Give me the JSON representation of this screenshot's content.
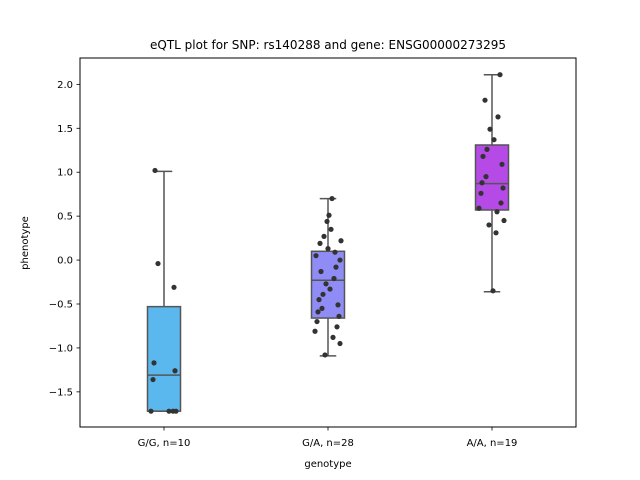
{
  "chart_data": {
    "type": "box",
    "title": "eQTL plot for SNP: rs140288 and gene: ENSG00000273295",
    "xlabel": "genotype",
    "ylabel": "phenotype",
    "ylim": [
      -1.9,
      2.3
    ],
    "yticks": [
      -1.5,
      -1.0,
      -0.5,
      0.0,
      0.5,
      1.0,
      1.5,
      2.0
    ],
    "ytick_labels": [
      "−1.5",
      "−1.0",
      "−0.5",
      "0.0",
      "0.5",
      "1.0",
      "1.5",
      "2.0"
    ],
    "grid": false,
    "categories": [
      "G/G, n=10",
      "G/A, n=28",
      "A/A, n=19"
    ],
    "boxes": [
      {
        "category": "G/G, n=10",
        "color": "#5bb8ee",
        "whisker_low": -1.72,
        "q1": -1.72,
        "median": -1.31,
        "q3": -0.53,
        "whisker_high": 1.01
      },
      {
        "category": "G/A, n=28",
        "color": "#8f8cf6",
        "whisker_low": -1.09,
        "q1": -0.66,
        "median": -0.23,
        "q3": 0.1,
        "whisker_high": 0.7
      },
      {
        "category": "A/A, n=19",
        "color": "#b64ae6",
        "whisker_low": -0.36,
        "q1": 0.57,
        "median": 0.87,
        "q3": 1.31,
        "whisker_high": 2.11
      }
    ],
    "points": [
      [
        1.02,
        -0.31,
        -0.04,
        -1.17,
        -1.26,
        -1.36,
        -1.72,
        -1.72,
        -1.72,
        -1.72
      ],
      [
        0.7,
        0.51,
        0.44,
        0.35,
        0.27,
        0.22,
        0.19,
        0.13,
        0.09,
        0.05,
        0.0,
        -0.08,
        -0.13,
        -0.21,
        -0.27,
        -0.33,
        -0.39,
        -0.45,
        -0.51,
        -0.55,
        -0.59,
        -0.64,
        -0.7,
        -0.76,
        -0.81,
        -0.88,
        -0.95,
        -1.08
      ],
      [
        2.11,
        1.82,
        1.63,
        1.49,
        1.37,
        1.26,
        1.18,
        1.09,
        0.95,
        0.88,
        0.82,
        0.76,
        0.65,
        0.59,
        0.55,
        0.45,
        0.4,
        0.31,
        -0.35
      ]
    ],
    "point_color": "#333333"
  }
}
